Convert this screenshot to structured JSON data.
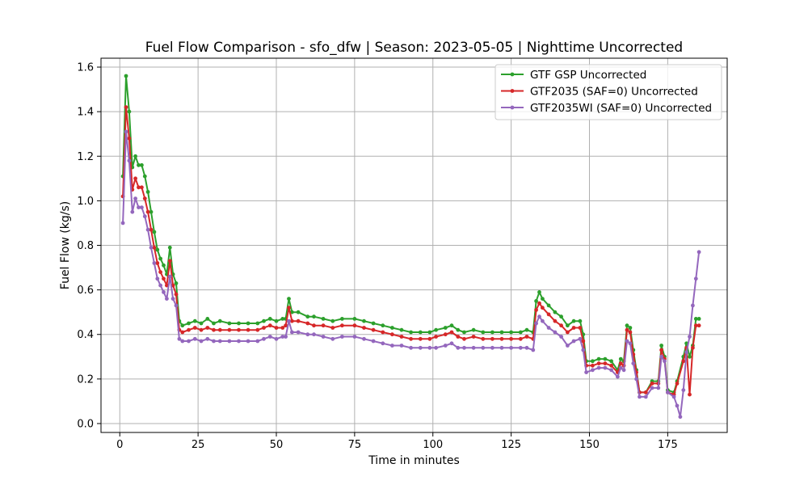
{
  "chart_data": {
    "type": "line",
    "title": "Fuel Flow Comparison - sfo_dfw | Season: 2023-05-05 | Nighttime Uncorrected",
    "xlabel": "Time in minutes",
    "ylabel": "Fuel Flow (kg/s)",
    "xlim": [
      -6,
      194
    ],
    "ylim": [
      -0.04,
      1.64
    ],
    "xticks": [
      0,
      25,
      50,
      75,
      100,
      125,
      150,
      175
    ],
    "yticks": [
      0.0,
      0.2,
      0.4,
      0.6,
      0.8,
      1.0,
      1.2,
      1.4,
      1.6
    ],
    "xtick_labels": [
      "0",
      "25",
      "50",
      "75",
      "100",
      "125",
      "150",
      "175"
    ],
    "ytick_labels": [
      "0.0",
      "0.2",
      "0.4",
      "0.6",
      "0.8",
      "1.0",
      "1.2",
      "1.4",
      "1.6"
    ],
    "grid": true,
    "legend_position": "top-right",
    "series": [
      {
        "name": "GTF GSP Uncorrected",
        "color": "#2ca02c",
        "points": [
          [
            1,
            1.11
          ],
          [
            2,
            1.56
          ],
          [
            3,
            1.4
          ],
          [
            4,
            1.15
          ],
          [
            5,
            1.2
          ],
          [
            6,
            1.16
          ],
          [
            7,
            1.16
          ],
          [
            8,
            1.11
          ],
          [
            9,
            1.04
          ],
          [
            10,
            0.95
          ],
          [
            11,
            0.86
          ],
          [
            12,
            0.78
          ],
          [
            13,
            0.74
          ],
          [
            14,
            0.71
          ],
          [
            15,
            0.67
          ],
          [
            16,
            0.79
          ],
          [
            17,
            0.67
          ],
          [
            18,
            0.63
          ],
          [
            19,
            0.46
          ],
          [
            20,
            0.44
          ],
          [
            22,
            0.45
          ],
          [
            24,
            0.46
          ],
          [
            26,
            0.45
          ],
          [
            28,
            0.47
          ],
          [
            30,
            0.45
          ],
          [
            32,
            0.46
          ],
          [
            35,
            0.45
          ],
          [
            38,
            0.45
          ],
          [
            41,
            0.45
          ],
          [
            44,
            0.45
          ],
          [
            46,
            0.46
          ],
          [
            48,
            0.47
          ],
          [
            50,
            0.46
          ],
          [
            52,
            0.47
          ],
          [
            53,
            0.47
          ],
          [
            54,
            0.56
          ],
          [
            55,
            0.5
          ],
          [
            57,
            0.5
          ],
          [
            60,
            0.48
          ],
          [
            62,
            0.48
          ],
          [
            65,
            0.47
          ],
          [
            68,
            0.46
          ],
          [
            71,
            0.47
          ],
          [
            75,
            0.47
          ],
          [
            78,
            0.46
          ],
          [
            81,
            0.45
          ],
          [
            84,
            0.44
          ],
          [
            87,
            0.43
          ],
          [
            90,
            0.42
          ],
          [
            93,
            0.41
          ],
          [
            96,
            0.41
          ],
          [
            99,
            0.41
          ],
          [
            101,
            0.42
          ],
          [
            104,
            0.43
          ],
          [
            106,
            0.44
          ],
          [
            108,
            0.42
          ],
          [
            110,
            0.41
          ],
          [
            113,
            0.42
          ],
          [
            116,
            0.41
          ],
          [
            119,
            0.41
          ],
          [
            122,
            0.41
          ],
          [
            125,
            0.41
          ],
          [
            128,
            0.41
          ],
          [
            130,
            0.42
          ],
          [
            132,
            0.41
          ],
          [
            133,
            0.55
          ],
          [
            134,
            0.59
          ],
          [
            135,
            0.56
          ],
          [
            137,
            0.53
          ],
          [
            139,
            0.5
          ],
          [
            141,
            0.48
          ],
          [
            143,
            0.44
          ],
          [
            145,
            0.46
          ],
          [
            147,
            0.46
          ],
          [
            148,
            0.4
          ],
          [
            149,
            0.28
          ],
          [
            151,
            0.28
          ],
          [
            153,
            0.29
          ],
          [
            155,
            0.29
          ],
          [
            157,
            0.28
          ],
          [
            159,
            0.24
          ],
          [
            160,
            0.29
          ],
          [
            161,
            0.28
          ],
          [
            162,
            0.44
          ],
          [
            163,
            0.43
          ],
          [
            164,
            0.33
          ],
          [
            165,
            0.24
          ],
          [
            166,
            0.14
          ],
          [
            168,
            0.14
          ],
          [
            170,
            0.19
          ],
          [
            172,
            0.19
          ],
          [
            173,
            0.35
          ],
          [
            174,
            0.3
          ],
          [
            175,
            0.15
          ],
          [
            177,
            0.14
          ],
          [
            178,
            0.19
          ],
          [
            180,
            0.3
          ],
          [
            181,
            0.36
          ],
          [
            182,
            0.3
          ],
          [
            183,
            0.35
          ],
          [
            184,
            0.47
          ],
          [
            185,
            0.47
          ]
        ]
      },
      {
        "name": "GTF2035 (SAF=0) Uncorrected",
        "color": "#d62728",
        "points": [
          [
            1,
            1.02
          ],
          [
            2,
            1.42
          ],
          [
            3,
            1.28
          ],
          [
            4,
            1.05
          ],
          [
            5,
            1.1
          ],
          [
            6,
            1.06
          ],
          [
            7,
            1.06
          ],
          [
            8,
            1.01
          ],
          [
            9,
            0.95
          ],
          [
            10,
            0.87
          ],
          [
            11,
            0.79
          ],
          [
            12,
            0.72
          ],
          [
            13,
            0.68
          ],
          [
            14,
            0.65
          ],
          [
            15,
            0.62
          ],
          [
            16,
            0.73
          ],
          [
            17,
            0.62
          ],
          [
            18,
            0.58
          ],
          [
            19,
            0.42
          ],
          [
            20,
            0.41
          ],
          [
            22,
            0.42
          ],
          [
            24,
            0.43
          ],
          [
            26,
            0.42
          ],
          [
            28,
            0.43
          ],
          [
            30,
            0.42
          ],
          [
            32,
            0.42
          ],
          [
            35,
            0.42
          ],
          [
            38,
            0.42
          ],
          [
            41,
            0.42
          ],
          [
            44,
            0.42
          ],
          [
            46,
            0.43
          ],
          [
            48,
            0.44
          ],
          [
            50,
            0.43
          ],
          [
            52,
            0.43
          ],
          [
            53,
            0.44
          ],
          [
            54,
            0.52
          ],
          [
            55,
            0.46
          ],
          [
            57,
            0.46
          ],
          [
            60,
            0.45
          ],
          [
            62,
            0.44
          ],
          [
            65,
            0.44
          ],
          [
            68,
            0.43
          ],
          [
            71,
            0.44
          ],
          [
            75,
            0.44
          ],
          [
            78,
            0.43
          ],
          [
            81,
            0.42
          ],
          [
            84,
            0.41
          ],
          [
            87,
            0.4
          ],
          [
            90,
            0.39
          ],
          [
            93,
            0.38
          ],
          [
            96,
            0.38
          ],
          [
            99,
            0.38
          ],
          [
            101,
            0.39
          ],
          [
            104,
            0.4
          ],
          [
            106,
            0.41
          ],
          [
            108,
            0.39
          ],
          [
            110,
            0.38
          ],
          [
            113,
            0.39
          ],
          [
            116,
            0.38
          ],
          [
            119,
            0.38
          ],
          [
            122,
            0.38
          ],
          [
            125,
            0.38
          ],
          [
            128,
            0.38
          ],
          [
            130,
            0.39
          ],
          [
            132,
            0.38
          ],
          [
            133,
            0.51
          ],
          [
            134,
            0.54
          ],
          [
            135,
            0.52
          ],
          [
            137,
            0.49
          ],
          [
            139,
            0.46
          ],
          [
            141,
            0.44
          ],
          [
            143,
            0.41
          ],
          [
            145,
            0.43
          ],
          [
            147,
            0.43
          ],
          [
            148,
            0.37
          ],
          [
            149,
            0.26
          ],
          [
            151,
            0.26
          ],
          [
            153,
            0.27
          ],
          [
            155,
            0.27
          ],
          [
            157,
            0.26
          ],
          [
            159,
            0.23
          ],
          [
            160,
            0.27
          ],
          [
            161,
            0.26
          ],
          [
            162,
            0.42
          ],
          [
            163,
            0.41
          ],
          [
            164,
            0.31
          ],
          [
            165,
            0.23
          ],
          [
            166,
            0.14
          ],
          [
            168,
            0.14
          ],
          [
            170,
            0.18
          ],
          [
            172,
            0.18
          ],
          [
            173,
            0.33
          ],
          [
            174,
            0.29
          ],
          [
            175,
            0.14
          ],
          [
            177,
            0.13
          ],
          [
            178,
            0.18
          ],
          [
            180,
            0.28
          ],
          [
            181,
            0.34
          ],
          [
            182,
            0.13
          ],
          [
            183,
            0.34
          ],
          [
            184,
            0.44
          ],
          [
            185,
            0.44
          ]
        ]
      },
      {
        "name": "GTF2035WI (SAF=0) Uncorrected",
        "color": "#9467bd",
        "points": [
          [
            1,
            0.9
          ],
          [
            2,
            1.31
          ],
          [
            3,
            1.18
          ],
          [
            4,
            0.95
          ],
          [
            5,
            1.01
          ],
          [
            6,
            0.97
          ],
          [
            7,
            0.97
          ],
          [
            8,
            0.93
          ],
          [
            9,
            0.87
          ],
          [
            10,
            0.79
          ],
          [
            11,
            0.72
          ],
          [
            12,
            0.65
          ],
          [
            13,
            0.62
          ],
          [
            14,
            0.59
          ],
          [
            15,
            0.56
          ],
          [
            16,
            0.66
          ],
          [
            17,
            0.56
          ],
          [
            18,
            0.53
          ],
          [
            19,
            0.38
          ],
          [
            20,
            0.37
          ],
          [
            22,
            0.37
          ],
          [
            24,
            0.38
          ],
          [
            26,
            0.37
          ],
          [
            28,
            0.38
          ],
          [
            30,
            0.37
          ],
          [
            32,
            0.37
          ],
          [
            35,
            0.37
          ],
          [
            38,
            0.37
          ],
          [
            41,
            0.37
          ],
          [
            44,
            0.37
          ],
          [
            46,
            0.38
          ],
          [
            48,
            0.39
          ],
          [
            50,
            0.38
          ],
          [
            52,
            0.39
          ],
          [
            53,
            0.39
          ],
          [
            54,
            0.46
          ],
          [
            55,
            0.41
          ],
          [
            57,
            0.41
          ],
          [
            60,
            0.4
          ],
          [
            62,
            0.4
          ],
          [
            65,
            0.39
          ],
          [
            68,
            0.38
          ],
          [
            71,
            0.39
          ],
          [
            75,
            0.39
          ],
          [
            78,
            0.38
          ],
          [
            81,
            0.37
          ],
          [
            84,
            0.36
          ],
          [
            87,
            0.35
          ],
          [
            90,
            0.35
          ],
          [
            93,
            0.34
          ],
          [
            96,
            0.34
          ],
          [
            99,
            0.34
          ],
          [
            101,
            0.34
          ],
          [
            104,
            0.35
          ],
          [
            106,
            0.36
          ],
          [
            108,
            0.34
          ],
          [
            110,
            0.34
          ],
          [
            113,
            0.34
          ],
          [
            116,
            0.34
          ],
          [
            119,
            0.34
          ],
          [
            122,
            0.34
          ],
          [
            125,
            0.34
          ],
          [
            128,
            0.34
          ],
          [
            130,
            0.34
          ],
          [
            132,
            0.33
          ],
          [
            133,
            0.45
          ],
          [
            134,
            0.48
          ],
          [
            135,
            0.46
          ],
          [
            137,
            0.43
          ],
          [
            139,
            0.41
          ],
          [
            141,
            0.39
          ],
          [
            143,
            0.35
          ],
          [
            145,
            0.37
          ],
          [
            147,
            0.38
          ],
          [
            148,
            0.33
          ],
          [
            149,
            0.23
          ],
          [
            151,
            0.24
          ],
          [
            153,
            0.25
          ],
          [
            155,
            0.25
          ],
          [
            157,
            0.24
          ],
          [
            159,
            0.21
          ],
          [
            160,
            0.25
          ],
          [
            161,
            0.24
          ],
          [
            162,
            0.37
          ],
          [
            163,
            0.36
          ],
          [
            164,
            0.27
          ],
          [
            165,
            0.2
          ],
          [
            166,
            0.12
          ],
          [
            168,
            0.12
          ],
          [
            170,
            0.16
          ],
          [
            172,
            0.16
          ],
          [
            173,
            0.3
          ],
          [
            174,
            0.28
          ],
          [
            175,
            0.14
          ],
          [
            177,
            0.12
          ],
          [
            178,
            0.08
          ],
          [
            179,
            0.03
          ],
          [
            180,
            0.15
          ],
          [
            181,
            0.32
          ],
          [
            182,
            0.39
          ],
          [
            183,
            0.53
          ],
          [
            184,
            0.65
          ],
          [
            185,
            0.77
          ]
        ]
      }
    ]
  }
}
